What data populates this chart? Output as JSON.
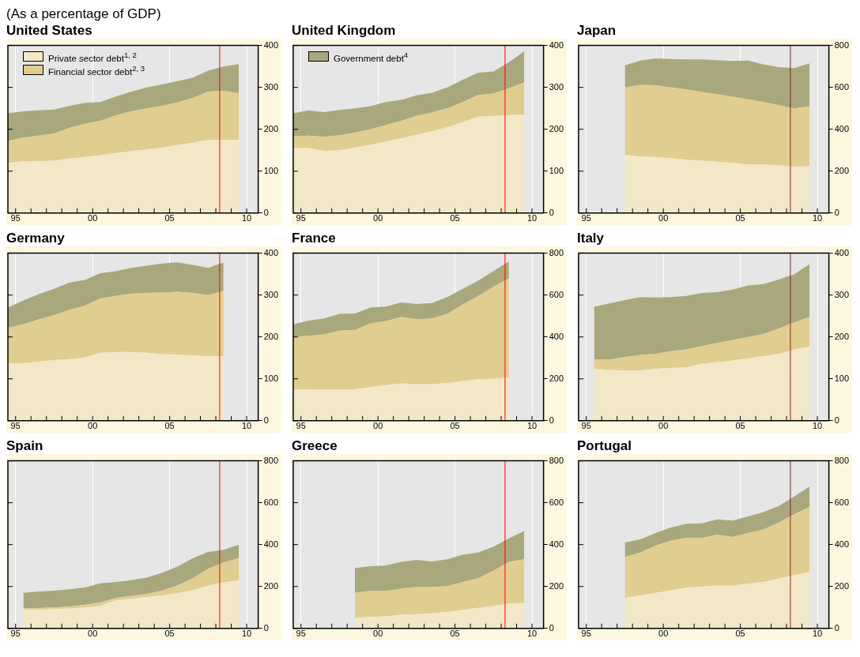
{
  "chart_data": [
    {
      "type": "area",
      "title": "United States",
      "subtitle": "(As a percentage of GDP)",
      "stacked": true,
      "grid": "x",
      "legend": "top left",
      "xlim": [
        1994.5,
        2010.75
      ],
      "ylim": [
        0,
        400
      ],
      "yticks": [
        0,
        100,
        200,
        300,
        400
      ],
      "xticks": [
        {
          "value": 1995,
          "label": "95"
        },
        {
          "value": 1996,
          "label": null
        },
        {
          "value": 1997,
          "label": null
        },
        {
          "value": 1998,
          "label": null
        },
        {
          "value": 1999,
          "label": null
        },
        {
          "value": 2000,
          "label": "00"
        },
        {
          "value": 2001,
          "label": null
        },
        {
          "value": 2002,
          "label": null
        },
        {
          "value": 2003,
          "label": null
        },
        {
          "value": 2004,
          "label": null
        },
        {
          "value": 2005,
          "label": "05"
        },
        {
          "value": 2006,
          "label": null
        },
        {
          "value": 2007,
          "label": null
        },
        {
          "value": 2008,
          "label": null
        },
        {
          "value": 2009,
          "label": null
        },
        {
          "value": 2010,
          "label": "10"
        }
      ],
      "x": [
        1994.5,
        1995.5,
        1996.5,
        1997.5,
        1998.5,
        1999.5,
        2000.5,
        2001.5,
        2002.5,
        2003.5,
        2004.5,
        2005.5,
        2006.5,
        2007.5,
        2008.5,
        2009.5
      ],
      "series": [
        {
          "name": "Private sector debt$^{1, 2}$",
          "color": "#f2e8c8",
          "values": [
            120,
            123,
            124,
            125,
            130,
            134,
            138,
            143,
            148,
            152,
            156,
            162,
            168,
            175,
            175,
            175
          ]
        },
        {
          "name": "Financial sector debt$^{2, 3}$",
          "color": "#e0cd90",
          "values": [
            52,
            57,
            61,
            65,
            73,
            79,
            82,
            90,
            95,
            98,
            100,
            102,
            107,
            115,
            117,
            111
          ]
        },
        {
          "color": "#a8a87c",
          "values": [
            66,
            63,
            60,
            57,
            53,
            50,
            45,
            45,
            47,
            50,
            51,
            51,
            48,
            50,
            58,
            70
          ]
        }
      ],
      "ref_lines": [
        {
          "axis": "x",
          "value": 2008.25,
          "color": "#ff0000"
        }
      ]
    },
    {
      "type": "area",
      "title": "United Kingdom",
      "stacked": true,
      "grid": "x",
      "legend": "top left",
      "xlim": [
        1994.5,
        2010.75
      ],
      "ylim": [
        0,
        400
      ],
      "yticks": [
        0,
        100,
        200,
        300,
        400
      ],
      "xticks": [
        {
          "value": 1995,
          "label": "95"
        },
        {
          "value": 1996,
          "label": null
        },
        {
          "value": 1997,
          "label": null
        },
        {
          "value": 1998,
          "label": null
        },
        {
          "value": 1999,
          "label": null
        },
        {
          "value": 2000,
          "label": "00"
        },
        {
          "value": 2001,
          "label": null
        },
        {
          "value": 2002,
          "label": null
        },
        {
          "value": 2003,
          "label": null
        },
        {
          "value": 2004,
          "label": null
        },
        {
          "value": 2005,
          "label": "05"
        },
        {
          "value": 2006,
          "label": null
        },
        {
          "value": 2007,
          "label": null
        },
        {
          "value": 2008,
          "label": null
        },
        {
          "value": 2009,
          "label": null
        },
        {
          "value": 2010,
          "label": "10"
        }
      ],
      "x": [
        1994.5,
        1995.5,
        1996.5,
        1997.5,
        1998.5,
        1999.5,
        2000.5,
        2001.5,
        2002.5,
        2003.5,
        2004.5,
        2005.5,
        2006.5,
        2007.5,
        2008.5,
        2009.5
      ],
      "series": [
        {
          "color": "#f2e8c8",
          "values": [
            155,
            155,
            148,
            150,
            156,
            163,
            170,
            178,
            187,
            195,
            205,
            217,
            230,
            232,
            234,
            235
          ]
        },
        {
          "color": "#e0cd90",
          "values": [
            28,
            30,
            34,
            36,
            36,
            37,
            40,
            42,
            45,
            45,
            45,
            48,
            52,
            53,
            64,
            77
          ]
        },
        {
          "name": "Government debt$^{4}$",
          "color": "#a8a87c",
          "values": [
            55,
            60,
            59,
            60,
            58,
            55,
            55,
            50,
            49,
            47,
            50,
            53,
            53,
            53,
            62,
            74
          ]
        }
      ],
      "ref_lines": [
        {
          "axis": "x",
          "value": 2008.25,
          "color": "#ff0000"
        }
      ]
    },
    {
      "type": "area",
      "title": "Japan",
      "stacked": true,
      "grid": "x",
      "xlim": [
        1994.5,
        2010.75
      ],
      "ylim": [
        0,
        800
      ],
      "yticks": [
        0,
        200,
        400,
        600,
        800
      ],
      "xticks": [
        {
          "value": 1995,
          "label": "95"
        },
        {
          "value": 1996,
          "label": null
        },
        {
          "value": 1997,
          "label": null
        },
        {
          "value": 1998,
          "label": null
        },
        {
          "value": 1999,
          "label": null
        },
        {
          "value": 2000,
          "label": "00"
        },
        {
          "value": 2001,
          "label": null
        },
        {
          "value": 2002,
          "label": null
        },
        {
          "value": 2003,
          "label": null
        },
        {
          "value": 2004,
          "label": null
        },
        {
          "value": 2005,
          "label": "05"
        },
        {
          "value": 2006,
          "label": null
        },
        {
          "value": 2007,
          "label": null
        },
        {
          "value": 2008,
          "label": null
        },
        {
          "value": 2009,
          "label": null
        },
        {
          "value": 2010,
          "label": "10"
        }
      ],
      "x": [
        1997.5,
        1998.5,
        1999.5,
        2000.5,
        2001.5,
        2002.5,
        2003.5,
        2004.5,
        2005.5,
        2006.5,
        2007.5,
        2008.5,
        2009.5
      ],
      "series": [
        {
          "color": "#f2e8c8",
          "values": [
            278,
            270,
            268,
            262,
            255,
            250,
            245,
            240,
            232,
            232,
            228,
            222,
            224
          ]
        },
        {
          "color": "#e0cd90",
          "values": [
            322,
            342,
            342,
            338,
            335,
            328,
            322,
            315,
            311,
            298,
            287,
            278,
            286
          ]
        },
        {
          "color": "#a8a87c",
          "values": [
            105,
            116,
            128,
            135,
            143,
            155,
            163,
            171,
            185,
            180,
            182,
            192,
            205
          ]
        }
      ],
      "ref_lines": [
        {
          "axis": "x",
          "value": 2008.25,
          "color": "#8b2323"
        }
      ]
    },
    {
      "type": "area",
      "title": "Germany",
      "stacked": true,
      "grid": "x",
      "xlim": [
        1994.5,
        2010.75
      ],
      "ylim": [
        0,
        400
      ],
      "yticks": [
        0,
        100,
        200,
        300,
        400
      ],
      "xticks": [
        {
          "value": 1995,
          "label": "95"
        },
        {
          "value": 1996,
          "label": null
        },
        {
          "value": 1997,
          "label": null
        },
        {
          "value": 1998,
          "label": null
        },
        {
          "value": 1999,
          "label": null
        },
        {
          "value": 2000,
          "label": "00"
        },
        {
          "value": 2001,
          "label": null
        },
        {
          "value": 2002,
          "label": null
        },
        {
          "value": 2003,
          "label": null
        },
        {
          "value": 2004,
          "label": null
        },
        {
          "value": 2005,
          "label": "05"
        },
        {
          "value": 2006,
          "label": null
        },
        {
          "value": 2007,
          "label": null
        },
        {
          "value": 2008,
          "label": null
        },
        {
          "value": 2009,
          "label": null
        },
        {
          "value": 2010,
          "label": "10"
        }
      ],
      "x": [
        1994.5,
        1995.5,
        1996.5,
        1997.5,
        1998.5,
        1999.5,
        2000.5,
        2001.5,
        2002.5,
        2003.5,
        2004.5,
        2005.5,
        2006.5,
        2007.5,
        2008.5
      ],
      "series": [
        {
          "color": "#f2e8c8",
          "values": [
            137,
            137,
            141,
            145,
            147,
            151,
            162,
            164,
            164,
            162,
            159,
            158,
            156,
            154,
            154
          ]
        },
        {
          "color": "#e0cd90",
          "values": [
            85,
            93,
            101,
            107,
            118,
            124,
            130,
            134,
            139,
            143,
            147,
            150,
            149,
            146,
            156
          ]
        },
        {
          "color": "#a8a87c",
          "values": [
            48,
            57,
            60,
            63,
            65,
            61,
            60,
            59,
            62,
            65,
            69,
            70,
            67,
            65,
            68
          ]
        }
      ],
      "ref_lines": [
        {
          "axis": "x",
          "value": 2008.25,
          "color": "#ff0000"
        }
      ]
    },
    {
      "type": "area",
      "title": "France",
      "stacked": true,
      "grid": "x",
      "xlim": [
        1994.5,
        2010.75
      ],
      "ylim": [
        0,
        800
      ],
      "yticks": [
        0,
        200,
        400,
        600,
        800
      ],
      "xticks": [
        {
          "value": 1995,
          "label": "95"
        },
        {
          "value": 1996,
          "label": null
        },
        {
          "value": 1997,
          "label": null
        },
        {
          "value": 1998,
          "label": null
        },
        {
          "value": 1999,
          "label": null
        },
        {
          "value": 2000,
          "label": "00"
        },
        {
          "value": 2001,
          "label": null
        },
        {
          "value": 2002,
          "label": null
        },
        {
          "value": 2003,
          "label": null
        },
        {
          "value": 2004,
          "label": null
        },
        {
          "value": 2005,
          "label": "05"
        },
        {
          "value": 2006,
          "label": null
        },
        {
          "value": 2007,
          "label": null
        },
        {
          "value": 2008,
          "label": null
        },
        {
          "value": 2009,
          "label": null
        },
        {
          "value": 2010,
          "label": "10"
        }
      ],
      "x": [
        1994.5,
        1995.5,
        1996.5,
        1997.5,
        1998.5,
        1999.5,
        2000.5,
        2001.5,
        2002.5,
        2003.5,
        2004.5,
        2005.5,
        2006.5,
        2007.5,
        2008.5
      ],
      "series": [
        {
          "color": "#f2e8c8",
          "values": [
            150,
            150,
            148,
            148,
            150,
            160,
            170,
            178,
            175,
            175,
            180,
            190,
            198,
            200,
            208
          ]
        },
        {
          "color": "#e0cd90",
          "values": [
            250,
            255,
            264,
            282,
            283,
            305,
            305,
            317,
            310,
            312,
            330,
            365,
            397,
            440,
            472
          ]
        },
        {
          "color": "#a8a87c",
          "values": [
            60,
            73,
            76,
            80,
            79,
            75,
            70,
            70,
            72,
            75,
            80,
            75,
            73,
            75,
            80
          ]
        }
      ],
      "ref_lines": [
        {
          "axis": "x",
          "value": 2008.25,
          "color": "#ff0000"
        }
      ]
    },
    {
      "type": "area",
      "title": "Italy",
      "stacked": true,
      "grid": "x",
      "xlim": [
        1994.5,
        2010.75
      ],
      "ylim": [
        0,
        400
      ],
      "yticks": [
        0,
        100,
        200,
        300,
        400
      ],
      "xticks": [
        {
          "value": 1995,
          "label": "95"
        },
        {
          "value": 1996,
          "label": null
        },
        {
          "value": 1997,
          "label": null
        },
        {
          "value": 1998,
          "label": null
        },
        {
          "value": 1999,
          "label": null
        },
        {
          "value": 2000,
          "label": "00"
        },
        {
          "value": 2001,
          "label": null
        },
        {
          "value": 2002,
          "label": null
        },
        {
          "value": 2003,
          "label": null
        },
        {
          "value": 2004,
          "label": null
        },
        {
          "value": 2005,
          "label": "05"
        },
        {
          "value": 2006,
          "label": null
        },
        {
          "value": 2007,
          "label": null
        },
        {
          "value": 2008,
          "label": null
        },
        {
          "value": 2009,
          "label": null
        },
        {
          "value": 2010,
          "label": "10"
        }
      ],
      "x": [
        1995.5,
        1996.5,
        1997.5,
        1998.5,
        1999.5,
        2000.5,
        2001.5,
        2002.5,
        2003.5,
        2004.5,
        2005.5,
        2006.5,
        2007.5,
        2008.5,
        2009.5
      ],
      "series": [
        {
          "color": "#f2e8c8",
          "values": [
            124,
            121,
            120,
            120,
            124,
            126,
            128,
            136,
            140,
            144,
            149,
            154,
            160,
            170,
            177
          ]
        },
        {
          "color": "#e0cd90",
          "values": [
            22,
            25,
            32,
            37,
            36,
            40,
            42,
            42,
            46,
            49,
            51,
            53,
            60,
            65,
            71
          ]
        },
        {
          "color": "#a8a87c",
          "values": [
            126,
            134,
            136,
            138,
            134,
            129,
            128,
            127,
            121,
            120,
            123,
            119,
            117,
            115,
            126
          ]
        }
      ],
      "ref_lines": [
        {
          "axis": "x",
          "value": 2008.25,
          "color": "#8b2323"
        }
      ]
    },
    {
      "type": "area",
      "title": "Spain",
      "stacked": true,
      "grid": "x",
      "xlim": [
        1994.5,
        2010.75
      ],
      "ylim": [
        0,
        800
      ],
      "yticks": [
        0,
        200,
        400,
        600,
        800
      ],
      "xticks": [
        {
          "value": 1995,
          "label": "95"
        },
        {
          "value": 1996,
          "label": null
        },
        {
          "value": 1997,
          "label": null
        },
        {
          "value": 1998,
          "label": null
        },
        {
          "value": 1999,
          "label": null
        },
        {
          "value": 2000,
          "label": "00"
        },
        {
          "value": 2001,
          "label": null
        },
        {
          "value": 2002,
          "label": null
        },
        {
          "value": 2003,
          "label": null
        },
        {
          "value": 2004,
          "label": null
        },
        {
          "value": 2005,
          "label": "05"
        },
        {
          "value": 2006,
          "label": null
        },
        {
          "value": 2007,
          "label": null
        },
        {
          "value": 2008,
          "label": null
        },
        {
          "value": 2009,
          "label": null
        },
        {
          "value": 2010,
          "label": "10"
        }
      ],
      "x": [
        1995.5,
        1996.5,
        1997.5,
        1998.5,
        1999.5,
        2000.5,
        2001.5,
        2002.5,
        2003.5,
        2004.5,
        2005.5,
        2006.5,
        2007.5,
        2008.5,
        2009.5
      ],
      "series": [
        {
          "color": "#f2e8c8",
          "values": [
            90,
            90,
            92,
            95,
            100,
            108,
            135,
            142,
            150,
            158,
            168,
            182,
            205,
            220,
            230
          ]
        },
        {
          "color": "#e0cd90",
          "values": [
            7,
            7,
            8,
            10,
            12,
            17,
            10,
            13,
            15,
            22,
            37,
            58,
            80,
            95,
            105
          ]
        },
        {
          "color": "#a8a87c",
          "values": [
            73,
            79,
            80,
            82,
            83,
            90,
            77,
            75,
            77,
            85,
            90,
            95,
            80,
            60,
            65
          ]
        }
      ],
      "ref_lines": [
        {
          "axis": "x",
          "value": 2008.25,
          "color": "#ff0000"
        }
      ]
    },
    {
      "type": "area",
      "title": "Greece",
      "stacked": true,
      "grid": "x",
      "xlim": [
        1994.5,
        2010.75
      ],
      "ylim": [
        0,
        800
      ],
      "yticks": [
        0,
        200,
        400,
        600,
        800
      ],
      "xticks": [
        {
          "value": 1995,
          "label": "95"
        },
        {
          "value": 1996,
          "label": null
        },
        {
          "value": 1997,
          "label": null
        },
        {
          "value": 1998,
          "label": null
        },
        {
          "value": 1999,
          "label": null
        },
        {
          "value": 2000,
          "label": "00"
        },
        {
          "value": 2001,
          "label": null
        },
        {
          "value": 2002,
          "label": null
        },
        {
          "value": 2003,
          "label": null
        },
        {
          "value": 2004,
          "label": null
        },
        {
          "value": 2005,
          "label": "05"
        },
        {
          "value": 2006,
          "label": null
        },
        {
          "value": 2007,
          "label": null
        },
        {
          "value": 2008,
          "label": null
        },
        {
          "value": 2009,
          "label": null
        },
        {
          "value": 2010,
          "label": "10"
        }
      ],
      "x": [
        1998.5,
        1999.5,
        2000.5,
        2001.5,
        2002.5,
        2003.5,
        2004.5,
        2005.5,
        2006.5,
        2007.5,
        2008.5,
        2009.5
      ],
      "series": [
        {
          "color": "#f2e8c8",
          "values": [
            50,
            55,
            58,
            65,
            68,
            72,
            78,
            88,
            98,
            108,
            118,
            122
          ]
        },
        {
          "color": "#e0cd90",
          "values": [
            120,
            123,
            120,
            125,
            129,
            125,
            124,
            134,
            142,
            167,
            200,
            208
          ]
        },
        {
          "color": "#a8a87c",
          "values": [
            118,
            119,
            122,
            128,
            130,
            123,
            128,
            130,
            122,
            115,
            112,
            135
          ]
        }
      ],
      "ref_lines": [
        {
          "axis": "x",
          "value": 2008.25,
          "color": "#ff0000"
        }
      ]
    },
    {
      "type": "area",
      "title": "Portugal",
      "stacked": true,
      "grid": "x",
      "xlim": [
        1994.5,
        2010.75
      ],
      "ylim": [
        0,
        800
      ],
      "yticks": [
        0,
        200,
        400,
        600,
        800
      ],
      "xticks": [
        {
          "value": 1995,
          "label": "95"
        },
        {
          "value": 1996,
          "label": null
        },
        {
          "value": 1997,
          "label": null
        },
        {
          "value": 1998,
          "label": null
        },
        {
          "value": 1999,
          "label": null
        },
        {
          "value": 2000,
          "label": "00"
        },
        {
          "value": 2001,
          "label": null
        },
        {
          "value": 2002,
          "label": null
        },
        {
          "value": 2003,
          "label": null
        },
        {
          "value": 2004,
          "label": null
        },
        {
          "value": 2005,
          "label": "05"
        },
        {
          "value": 2006,
          "label": null
        },
        {
          "value": 2007,
          "label": null
        },
        {
          "value": 2008,
          "label": null
        },
        {
          "value": 2009,
          "label": null
        },
        {
          "value": 2010,
          "label": "10"
        }
      ],
      "x": [
        1997.5,
        1998.5,
        1999.5,
        2000.5,
        2001.5,
        2002.5,
        2003.5,
        2004.5,
        2005.5,
        2006.5,
        2007.5,
        2008.5,
        2009.5
      ],
      "series": [
        {
          "color": "#f2e8c8",
          "values": [
            145,
            158,
            170,
            182,
            195,
            200,
            205,
            205,
            213,
            222,
            238,
            255,
            270
          ]
        },
        {
          "color": "#e0cd90",
          "values": [
            195,
            204,
            225,
            238,
            237,
            232,
            242,
            232,
            242,
            250,
            267,
            290,
            310
          ]
        },
        {
          "color": "#a8a87c",
          "values": [
            70,
            63,
            60,
            62,
            68,
            70,
            73,
            78,
            80,
            83,
            80,
            85,
            98
          ]
        }
      ],
      "ref_lines": [
        {
          "axis": "x",
          "value": 2008.25,
          "color": "#8b2323"
        }
      ]
    }
  ]
}
